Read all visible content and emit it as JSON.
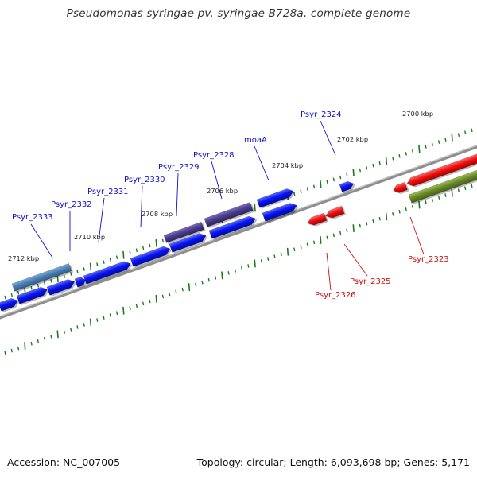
{
  "title": "Pseudomonas syringae pv. syringae B728a, complete genome",
  "footer": {
    "accession": "Accession: NC_007005",
    "topology": "Topology: circular; Length: 6,093,698 bp; Genes: 5,171"
  },
  "colors": {
    "forward_gene": "#0a14f0",
    "reverse_gene": "#f01010",
    "rna_gene": "#6a8a28",
    "operon_blue": "#4a7fb5",
    "operon_purple": "#4a3d8c",
    "backbone": "#888888",
    "tick": "#1a7a1a",
    "label_forward": "#1010cc",
    "label_reverse": "#cc1010"
  },
  "scale_labels": [
    "2700 kbp",
    "2702 kbp",
    "2704 kbp",
    "2706 kbp",
    "2708 kbp",
    "2710 kbp",
    "2712 kbp"
  ],
  "gene_labels_forward": [
    "Psyr_2324",
    "moaA",
    "Psyr_2328",
    "Psyr_2329",
    "Psyr_2330",
    "Psyr_2331",
    "Psyr_2332",
    "Psyr_2333"
  ],
  "gene_labels_reverse": [
    "Psyr_2323",
    "Psyr_2325",
    "Psyr_2326"
  ]
}
